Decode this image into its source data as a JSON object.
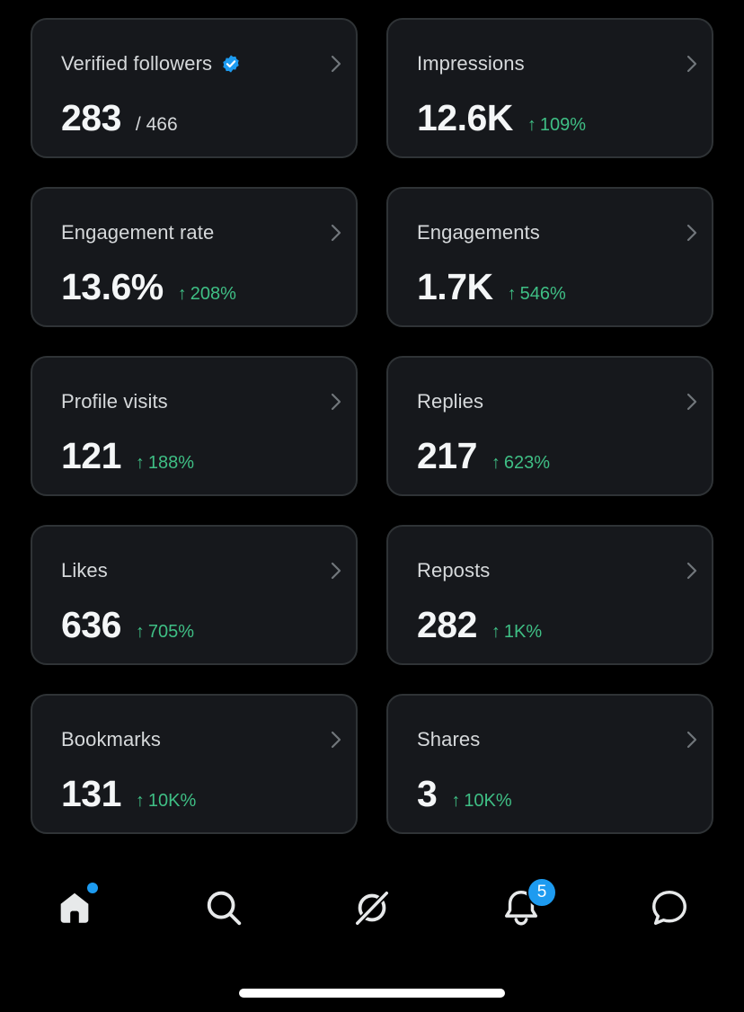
{
  "cards": [
    {
      "label": "Verified followers",
      "value": "283",
      "sub": "/ 466",
      "verified": true
    },
    {
      "label": "Impressions",
      "value": "12.6K",
      "change": "109%"
    },
    {
      "label": "Engagement rate",
      "value": "13.6%",
      "change": "208%"
    },
    {
      "label": "Engagements",
      "value": "1.7K",
      "change": "546%"
    },
    {
      "label": "Profile visits",
      "value": "121",
      "change": "188%"
    },
    {
      "label": "Replies",
      "value": "217",
      "change": "623%"
    },
    {
      "label": "Likes",
      "value": "636",
      "change": "705%"
    },
    {
      "label": "Reposts",
      "value": "282",
      "change": "1K%"
    },
    {
      "label": "Bookmarks",
      "value": "131",
      "change": "10K%"
    },
    {
      "label": "Shares",
      "value": "3",
      "change": "10K%"
    }
  ],
  "arrow_glyph": "↑",
  "tabbar": {
    "items": [
      {
        "name": "home",
        "icon": "home-icon",
        "has_dot": true
      },
      {
        "name": "search",
        "icon": "search-icon"
      },
      {
        "name": "grok",
        "icon": "grok-icon"
      },
      {
        "name": "notifications",
        "icon": "bell-icon",
        "badge": "5"
      },
      {
        "name": "messages",
        "icon": "message-icon"
      }
    ]
  },
  "colors": {
    "background": "#000000",
    "card_bg": "#16181c",
    "card_border": "#2f3336",
    "positive": "#3fbf85",
    "accent": "#1d9bf0"
  }
}
